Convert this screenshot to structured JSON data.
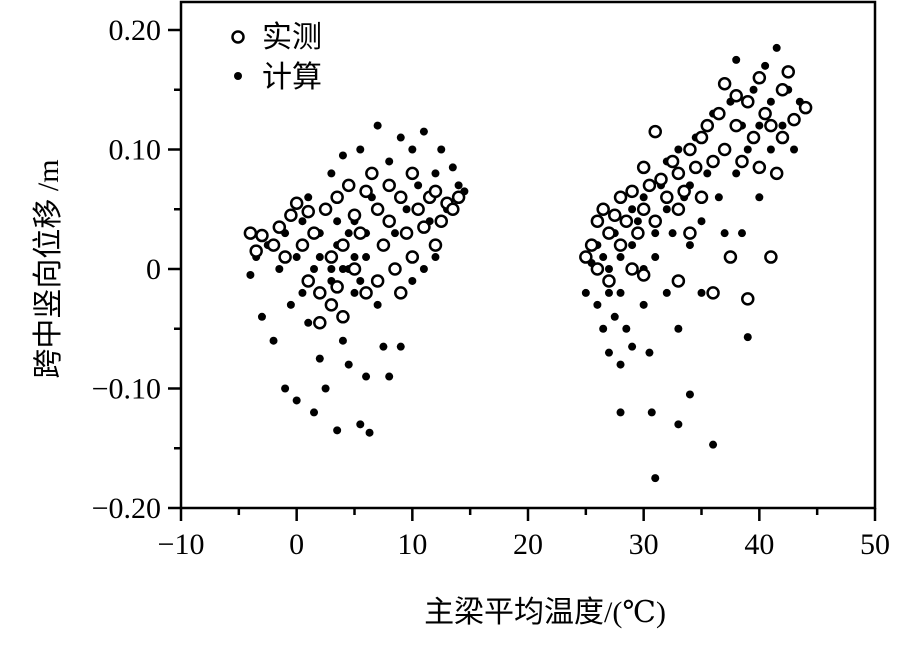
{
  "chart_data": {
    "type": "scatter",
    "xlabel": "主梁平均温度/(℃)",
    "ylabel": "跨中竖向位移 /m",
    "xlim": [
      -10,
      50
    ],
    "ylim": [
      -0.2,
      0.2
    ],
    "xticks": [
      "−10",
      "0",
      "10",
      "20",
      "30",
      "40",
      "50"
    ],
    "yticks": [
      "−0.20",
      "−0.10",
      "0",
      "0.10",
      "0.20"
    ],
    "legend_position": "top-left",
    "grid": false,
    "series": [
      {
        "name": "实测",
        "marker": "open-circle",
        "color": "#000000",
        "points": [
          [
            -4,
            0.03
          ],
          [
            -3.5,
            0.015
          ],
          [
            -3,
            0.028
          ],
          [
            -2,
            0.02
          ],
          [
            -1.5,
            0.035
          ],
          [
            -1,
            0.01
          ],
          [
            -0.5,
            0.045
          ],
          [
            0,
            0.055
          ],
          [
            0.5,
            0.02
          ],
          [
            1,
            0.048
          ],
          [
            1.5,
            0.03
          ],
          [
            2,
            -0.02
          ],
          [
            2.5,
            0.05
          ],
          [
            3,
            0.01
          ],
          [
            3,
            -0.03
          ],
          [
            3.5,
            0.06
          ],
          [
            4,
            0.02
          ],
          [
            4,
            -0.04
          ],
          [
            4.5,
            0.07
          ],
          [
            5,
            0.0
          ],
          [
            5,
            0.045
          ],
          [
            5.5,
            0.03
          ],
          [
            6,
            0.065
          ],
          [
            6,
            -0.02
          ],
          [
            6.5,
            0.08
          ],
          [
            7,
            0.05
          ],
          [
            7.5,
            0.02
          ],
          [
            8,
            0.07
          ],
          [
            8,
            0.04
          ],
          [
            8.5,
            0.0
          ],
          [
            9,
            0.06
          ],
          [
            9.5,
            0.03
          ],
          [
            10,
            0.08
          ],
          [
            10,
            0.01
          ],
          [
            10.5,
            0.05
          ],
          [
            11,
            0.035
          ],
          [
            11.5,
            0.06
          ],
          [
            12,
            0.02
          ],
          [
            12,
            0.065
          ],
          [
            12.5,
            0.04
          ],
          [
            13,
            0.055
          ],
          [
            13.5,
            0.05
          ],
          [
            14,
            0.06
          ],
          [
            1,
            -0.01
          ],
          [
            2,
            -0.045
          ],
          [
            3.5,
            -0.015
          ],
          [
            7,
            -0.01
          ],
          [
            9,
            -0.02
          ],
          [
            25,
            0.01
          ],
          [
            25.5,
            0.02
          ],
          [
            26,
            0.04
          ],
          [
            26,
            0.0
          ],
          [
            26.5,
            0.05
          ],
          [
            27,
            0.03
          ],
          [
            27,
            -0.01
          ],
          [
            27.5,
            0.045
          ],
          [
            28,
            0.06
          ],
          [
            28,
            0.02
          ],
          [
            28.5,
            0.04
          ],
          [
            29,
            0.065
          ],
          [
            29.5,
            0.03
          ],
          [
            30,
            0.085
          ],
          [
            30,
            0.05
          ],
          [
            30.5,
            0.07
          ],
          [
            31,
            0.04
          ],
          [
            31,
            0.115
          ],
          [
            31.5,
            0.075
          ],
          [
            32,
            0.06
          ],
          [
            32.5,
            0.09
          ],
          [
            33,
            0.05
          ],
          [
            33,
            0.08
          ],
          [
            33.5,
            0.065
          ],
          [
            34,
            0.1
          ],
          [
            34,
            0.03
          ],
          [
            34.5,
            0.085
          ],
          [
            35,
            0.11
          ],
          [
            35,
            0.06
          ],
          [
            35.5,
            0.12
          ],
          [
            36,
            0.09
          ],
          [
            36,
            -0.02
          ],
          [
            36.5,
            0.13
          ],
          [
            37,
            0.1
          ],
          [
            37,
            0.155
          ],
          [
            37.5,
            0.01
          ],
          [
            38,
            0.12
          ],
          [
            38,
            0.145
          ],
          [
            38.5,
            0.09
          ],
          [
            39,
            0.14
          ],
          [
            39,
            -0.025
          ],
          [
            39.5,
            0.11
          ],
          [
            40,
            0.16
          ],
          [
            40,
            0.085
          ],
          [
            40.5,
            0.13
          ],
          [
            41,
            0.01
          ],
          [
            41,
            0.12
          ],
          [
            41.5,
            0.08
          ],
          [
            42,
            0.15
          ],
          [
            42,
            0.11
          ],
          [
            42.5,
            0.165
          ],
          [
            43,
            0.125
          ],
          [
            44,
            0.135
          ],
          [
            33,
            -0.01
          ],
          [
            30,
            -0.005
          ],
          [
            29,
            0.0
          ]
        ]
      },
      {
        "name": "计算",
        "marker": "filled-dot",
        "color": "#000000",
        "points": [
          [
            -4,
            -0.005
          ],
          [
            -3.5,
            0.01
          ],
          [
            -3,
            -0.04
          ],
          [
            -2.5,
            0.02
          ],
          [
            -2,
            -0.06
          ],
          [
            -1.5,
            0.0
          ],
          [
            -1,
            0.03
          ],
          [
            -1,
            -0.1
          ],
          [
            -0.5,
            -0.03
          ],
          [
            0,
            0.01
          ],
          [
            0,
            -0.11
          ],
          [
            0.5,
            0.04
          ],
          [
            0.5,
            -0.02
          ],
          [
            1,
            -0.045
          ],
          [
            1,
            0.06
          ],
          [
            1.5,
            0.0
          ],
          [
            1.5,
            -0.12
          ],
          [
            2,
            0.03
          ],
          [
            2,
            -0.075
          ],
          [
            2.5,
            0.05
          ],
          [
            2.5,
            -0.1
          ],
          [
            3,
            -0.01
          ],
          [
            3,
            0.08
          ],
          [
            3.5,
            -0.135
          ],
          [
            3.5,
            0.02
          ],
          [
            4,
            -0.06
          ],
          [
            4,
            0.095
          ],
          [
            4.5,
            0.0
          ],
          [
            4.5,
            -0.08
          ],
          [
            5,
            0.04
          ],
          [
            5,
            -0.02
          ],
          [
            5.5,
            -0.13
          ],
          [
            5.5,
            0.1
          ],
          [
            6,
            0.01
          ],
          [
            6,
            -0.09
          ],
          [
            6.3,
            -0.137
          ],
          [
            6.5,
            0.06
          ],
          [
            7,
            -0.03
          ],
          [
            7,
            0.12
          ],
          [
            7.5,
            0.02
          ],
          [
            7.5,
            -0.065
          ],
          [
            8,
            0.09
          ],
          [
            8,
            -0.09
          ],
          [
            8.5,
            0.03
          ],
          [
            9,
            0.11
          ],
          [
            9,
            -0.065
          ],
          [
            9.5,
            0.05
          ],
          [
            10,
            -0.01
          ],
          [
            10,
            0.1
          ],
          [
            10.5,
            0.07
          ],
          [
            11,
            0.0
          ],
          [
            11,
            0.115
          ],
          [
            11.5,
            0.04
          ],
          [
            12,
            0.08
          ],
          [
            12,
            0.01
          ],
          [
            12.5,
            0.1
          ],
          [
            13,
            0.05
          ],
          [
            13.5,
            0.085
          ],
          [
            14,
            0.07
          ],
          [
            14.5,
            0.065
          ],
          [
            4,
            0.0
          ],
          [
            5,
            0.01
          ],
          [
            3,
            0.0
          ],
          [
            6,
            0.03
          ],
          [
            2,
            0.01
          ],
          [
            4.5,
            0.03
          ],
          [
            5.5,
            -0.01
          ],
          [
            3.5,
            0.04
          ],
          [
            25,
            -0.02
          ],
          [
            25.5,
            0.005
          ],
          [
            26,
            -0.03
          ],
          [
            26,
            0.02
          ],
          [
            26.5,
            -0.05
          ],
          [
            26.5,
            0.01
          ],
          [
            27,
            -0.07
          ],
          [
            27,
            0.0
          ],
          [
            27.5,
            -0.04
          ],
          [
            27.5,
            0.03
          ],
          [
            28,
            -0.08
          ],
          [
            28,
            -0.12
          ],
          [
            28,
            0.01
          ],
          [
            28.5,
            -0.05
          ],
          [
            29,
            0.02
          ],
          [
            29,
            -0.065
          ],
          [
            29.5,
            0.04
          ],
          [
            30,
            -0.03
          ],
          [
            30,
            0.06
          ],
          [
            30.5,
            -0.07
          ],
          [
            30.7,
            -0.12
          ],
          [
            31,
            0.01
          ],
          [
            31,
            -0.175
          ],
          [
            31.5,
            0.07
          ],
          [
            32,
            -0.02
          ],
          [
            32,
            0.09
          ],
          [
            32.5,
            0.03
          ],
          [
            33,
            -0.05
          ],
          [
            33,
            0.1
          ],
          [
            33,
            -0.13
          ],
          [
            33.5,
            0.06
          ],
          [
            34,
            0.02
          ],
          [
            34,
            -0.105
          ],
          [
            34.5,
            0.11
          ],
          [
            35,
            0.04
          ],
          [
            35,
            -0.02
          ],
          [
            35.5,
            0.08
          ],
          [
            36,
            0.13
          ],
          [
            36,
            -0.147
          ],
          [
            36.5,
            0.06
          ],
          [
            37,
            0.1
          ],
          [
            37,
            0.03
          ],
          [
            37.5,
            0.14
          ],
          [
            38,
            0.08
          ],
          [
            38,
            0.175
          ],
          [
            38.5,
            0.12
          ],
          [
            38.5,
            0.03
          ],
          [
            39,
            0.1
          ],
          [
            39,
            -0.057
          ],
          [
            39.5,
            0.15
          ],
          [
            40,
            0.12
          ],
          [
            40,
            0.06
          ],
          [
            40.5,
            0.17
          ],
          [
            41,
            0.1
          ],
          [
            41,
            0.14
          ],
          [
            41.5,
            0.185
          ],
          [
            42,
            0.12
          ],
          [
            42.5,
            0.15
          ],
          [
            43,
            0.1
          ],
          [
            43.5,
            0.14
          ],
          [
            29,
            0.05
          ],
          [
            31,
            0.03
          ],
          [
            30,
            0.0
          ],
          [
            32,
            0.05
          ],
          [
            28,
            -0.02
          ],
          [
            27,
            -0.02
          ],
          [
            34,
            0.07
          ],
          [
            36,
            0.09
          ]
        ]
      }
    ]
  },
  "legend": {
    "measured": "实测",
    "computed": "计算"
  }
}
